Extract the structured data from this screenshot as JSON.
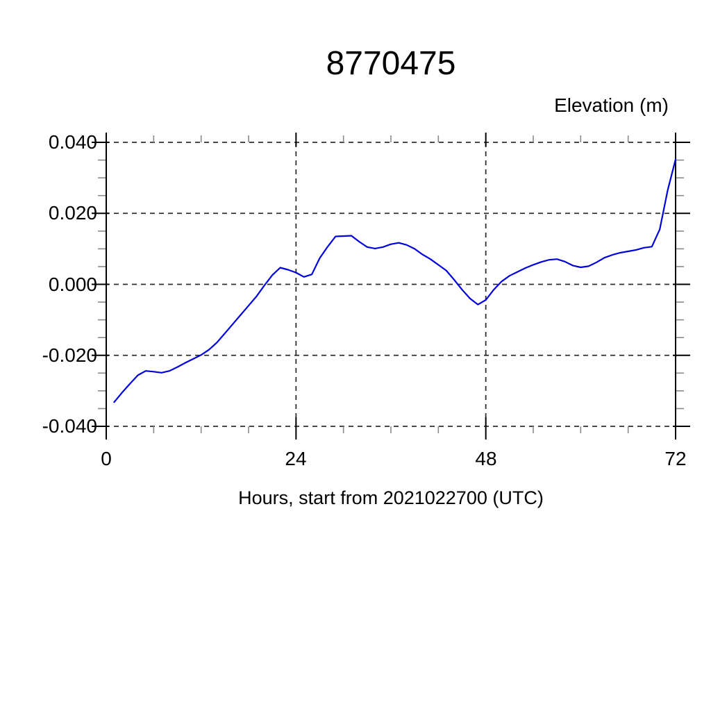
{
  "chart_data": {
    "type": "line",
    "title": "8770475",
    "ylabel": "Elevation (m)",
    "xlabel": "Hours, start from 2021022700 (UTC)",
    "xlim": [
      0,
      72
    ],
    "ylim": [
      -0.04,
      0.04
    ],
    "xticks": [
      0,
      24,
      48,
      72
    ],
    "xtick_labels": [
      "0",
      "24",
      "48",
      "72"
    ],
    "x_minor_step": 6,
    "yticks": [
      0.04,
      0.02,
      0.0,
      -0.02,
      -0.04
    ],
    "ytick_labels": [
      "0.040",
      "0.020",
      "0.000",
      "-0.020",
      "-0.040"
    ],
    "y_minor_step": 0.005,
    "grid": "dashed lines at every major tick, full frame dashed at top and bottom",
    "legend": "none",
    "line_color": "#0000dd",
    "series": [
      {
        "name": "elevation",
        "x": [
          1,
          2,
          3,
          4,
          5,
          6,
          7,
          8,
          9,
          10,
          11,
          12,
          13,
          14,
          15,
          16,
          17,
          18,
          19,
          20,
          21,
          22,
          23,
          24,
          25,
          26,
          27,
          28,
          29,
          30,
          31,
          32,
          33,
          34,
          35,
          36,
          37,
          38,
          39,
          40,
          41,
          42,
          43,
          44,
          45,
          46,
          47,
          48,
          49,
          50,
          51,
          52,
          53,
          54,
          55,
          56,
          57,
          58,
          59,
          60,
          61,
          62,
          63,
          64,
          65,
          66,
          67,
          68,
          69,
          70,
          71,
          72
        ],
        "values": [
          -0.0332,
          -0.0305,
          -0.028,
          -0.0256,
          -0.0244,
          -0.0246,
          -0.0249,
          -0.0244,
          -0.0233,
          -0.0221,
          -0.021,
          -0.0199,
          -0.0184,
          -0.0164,
          -0.0138,
          -0.0112,
          -0.0086,
          -0.006,
          -0.0034,
          -0.0003,
          0.0026,
          0.0047,
          0.0041,
          0.0033,
          0.0021,
          0.0028,
          0.0074,
          0.0106,
          0.0135,
          0.0136,
          0.0137,
          0.012,
          0.0105,
          0.0101,
          0.0105,
          0.0113,
          0.0117,
          0.0111,
          0.01,
          0.0084,
          0.0071,
          0.0055,
          0.0039,
          0.0013,
          -0.0015,
          -0.004,
          -0.0057,
          -0.0044,
          -0.0015,
          0.0008,
          0.0024,
          0.0035,
          0.0046,
          0.0055,
          0.0063,
          0.0069,
          0.0071,
          0.0064,
          0.0053,
          0.0048,
          0.0051,
          0.0062,
          0.0075,
          0.0083,
          0.0089,
          0.0093,
          0.0097,
          0.0103,
          0.0106,
          0.0155,
          0.0265,
          0.0352
        ]
      }
    ]
  }
}
